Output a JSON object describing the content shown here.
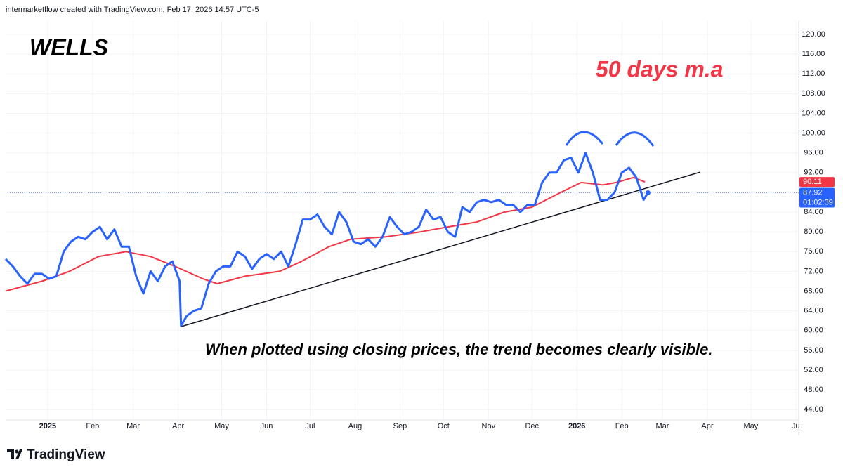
{
  "header": "intermarketflow created with TradingView.com, Feb 17, 2026 14:57 UTC-5",
  "footer": "TradingView",
  "countdown": "01:02:39",
  "chart_data": {
    "type": "line",
    "title": "WELLS",
    "annotations": [
      "50 days m.a",
      "When plotted using closing prices, the trend becomes clearly visible."
    ],
    "xlim": [
      0,
      547
    ],
    "xticks": [
      {
        "value": 29,
        "label": "2025"
      },
      {
        "value": 60,
        "label": "Feb"
      },
      {
        "value": 88,
        "label": "Mar"
      },
      {
        "value": 119,
        "label": "Apr"
      },
      {
        "value": 149,
        "label": "May"
      },
      {
        "value": 180,
        "label": "Jun"
      },
      {
        "value": 210,
        "label": "Jul"
      },
      {
        "value": 241,
        "label": "Aug"
      },
      {
        "value": 272,
        "label": "Sep"
      },
      {
        "value": 302,
        "label": "Oct"
      },
      {
        "value": 333,
        "label": "Nov"
      },
      {
        "value": 363,
        "label": "Dec"
      },
      {
        "value": 394,
        "label": "2026"
      },
      {
        "value": 425,
        "label": "Feb"
      },
      {
        "value": 453,
        "label": "Mar"
      },
      {
        "value": 484,
        "label": "Apr"
      },
      {
        "value": 514,
        "label": "May"
      },
      {
        "value": 545,
        "label": "Ju"
      }
    ],
    "ylim": [
      41.9,
      122.7
    ],
    "yticks": [
      {
        "value": 44,
        "label": "44.00"
      },
      {
        "value": 48,
        "label": "48.00"
      },
      {
        "value": 52,
        "label": "52.00"
      },
      {
        "value": 56,
        "label": "56.00"
      },
      {
        "value": 60,
        "label": "60.00"
      },
      {
        "value": 64,
        "label": "64.00"
      },
      {
        "value": 68,
        "label": "68.00"
      },
      {
        "value": 72,
        "label": "72.00"
      },
      {
        "value": 76,
        "label": "76.00"
      },
      {
        "value": 80,
        "label": "80.00"
      },
      {
        "value": 84,
        "label": "84.00"
      },
      {
        "value": 88,
        "label": "88.00"
      },
      {
        "value": 92,
        "label": "92.00"
      },
      {
        "value": 96,
        "label": "96.00"
      },
      {
        "value": 100,
        "label": "100.00"
      },
      {
        "value": 104,
        "label": "104.00"
      },
      {
        "value": 108,
        "label": "108.00"
      },
      {
        "value": 112,
        "label": "112.00"
      },
      {
        "value": 116,
        "label": "116.00"
      },
      {
        "value": 120,
        "label": "120.00"
      }
    ],
    "series": [
      {
        "color": "#2962ff",
        "width": 3,
        "x": [
          0,
          5,
          10,
          15,
          20,
          25,
          30,
          35,
          40,
          45,
          50,
          55,
          60,
          65,
          70,
          75,
          80,
          85,
          90,
          95,
          100,
          105,
          110,
          115,
          120,
          121,
          125,
          130,
          135,
          140,
          145,
          150,
          155,
          160,
          165,
          170,
          175,
          180,
          185,
          190,
          195,
          200,
          205,
          210,
          215,
          220,
          225,
          230,
          235,
          240,
          245,
          250,
          255,
          260,
          265,
          270,
          275,
          280,
          285,
          290,
          295,
          300,
          305,
          310,
          315,
          320,
          325,
          330,
          335,
          340,
          345,
          350,
          355,
          360,
          365,
          370,
          375,
          380,
          385,
          390,
          395,
          400,
          405,
          410,
          415,
          420,
          425,
          430,
          435,
          440,
          443
        ],
        "values": [
          74.5,
          73,
          71,
          69.5,
          71.5,
          71.5,
          70.5,
          71,
          76,
          78,
          79,
          78.5,
          80,
          81,
          78.5,
          80.5,
          77,
          77,
          71,
          67.5,
          72,
          70,
          73,
          74,
          70,
          61,
          63,
          64,
          64.5,
          69.5,
          72,
          73,
          73,
          76,
          75,
          72.5,
          74.5,
          75.5,
          74.5,
          76,
          73,
          77.5,
          82.5,
          82.5,
          83.5,
          81,
          79.5,
          84,
          82,
          78,
          77.5,
          78.5,
          77,
          79,
          83,
          81,
          79.5,
          80,
          81,
          84.5,
          82.5,
          83,
          80,
          79,
          85,
          84,
          86,
          86.5,
          86,
          86.5,
          85.5,
          85.5,
          84,
          85.5,
          85.5,
          90,
          92,
          92,
          94.5,
          95,
          92,
          96,
          92,
          86.5,
          86.5,
          88,
          92,
          93,
          91,
          86.5,
          87.92
        ]
      },
      {
        "color": "#f23645",
        "width": 2,
        "x": [
          0,
          25,
          44,
          64,
          83,
          100,
          117,
          136,
          146,
          165,
          189,
          204,
          223,
          238,
          262,
          286,
          305,
          325,
          344,
          363,
          383,
          397,
          412,
          421,
          433,
          441
        ],
        "values": [
          68,
          70,
          72,
          75,
          76,
          75,
          73,
          70.5,
          69.5,
          71,
          72,
          74,
          77,
          78.5,
          79,
          80,
          81,
          82,
          84,
          85,
          88,
          90,
          89.5,
          90,
          91,
          90.11
        ]
      }
    ],
    "trendline": {
      "color": "#131722",
      "x": [
        121,
        479
      ],
      "values": [
        60.8,
        92.1
      ]
    },
    "price_labels": [
      {
        "value": 90.11,
        "label": "90.11",
        "color": "#f23645"
      },
      {
        "value": 87.92,
        "label": "87.92",
        "color": "#2962ff"
      }
    ]
  }
}
